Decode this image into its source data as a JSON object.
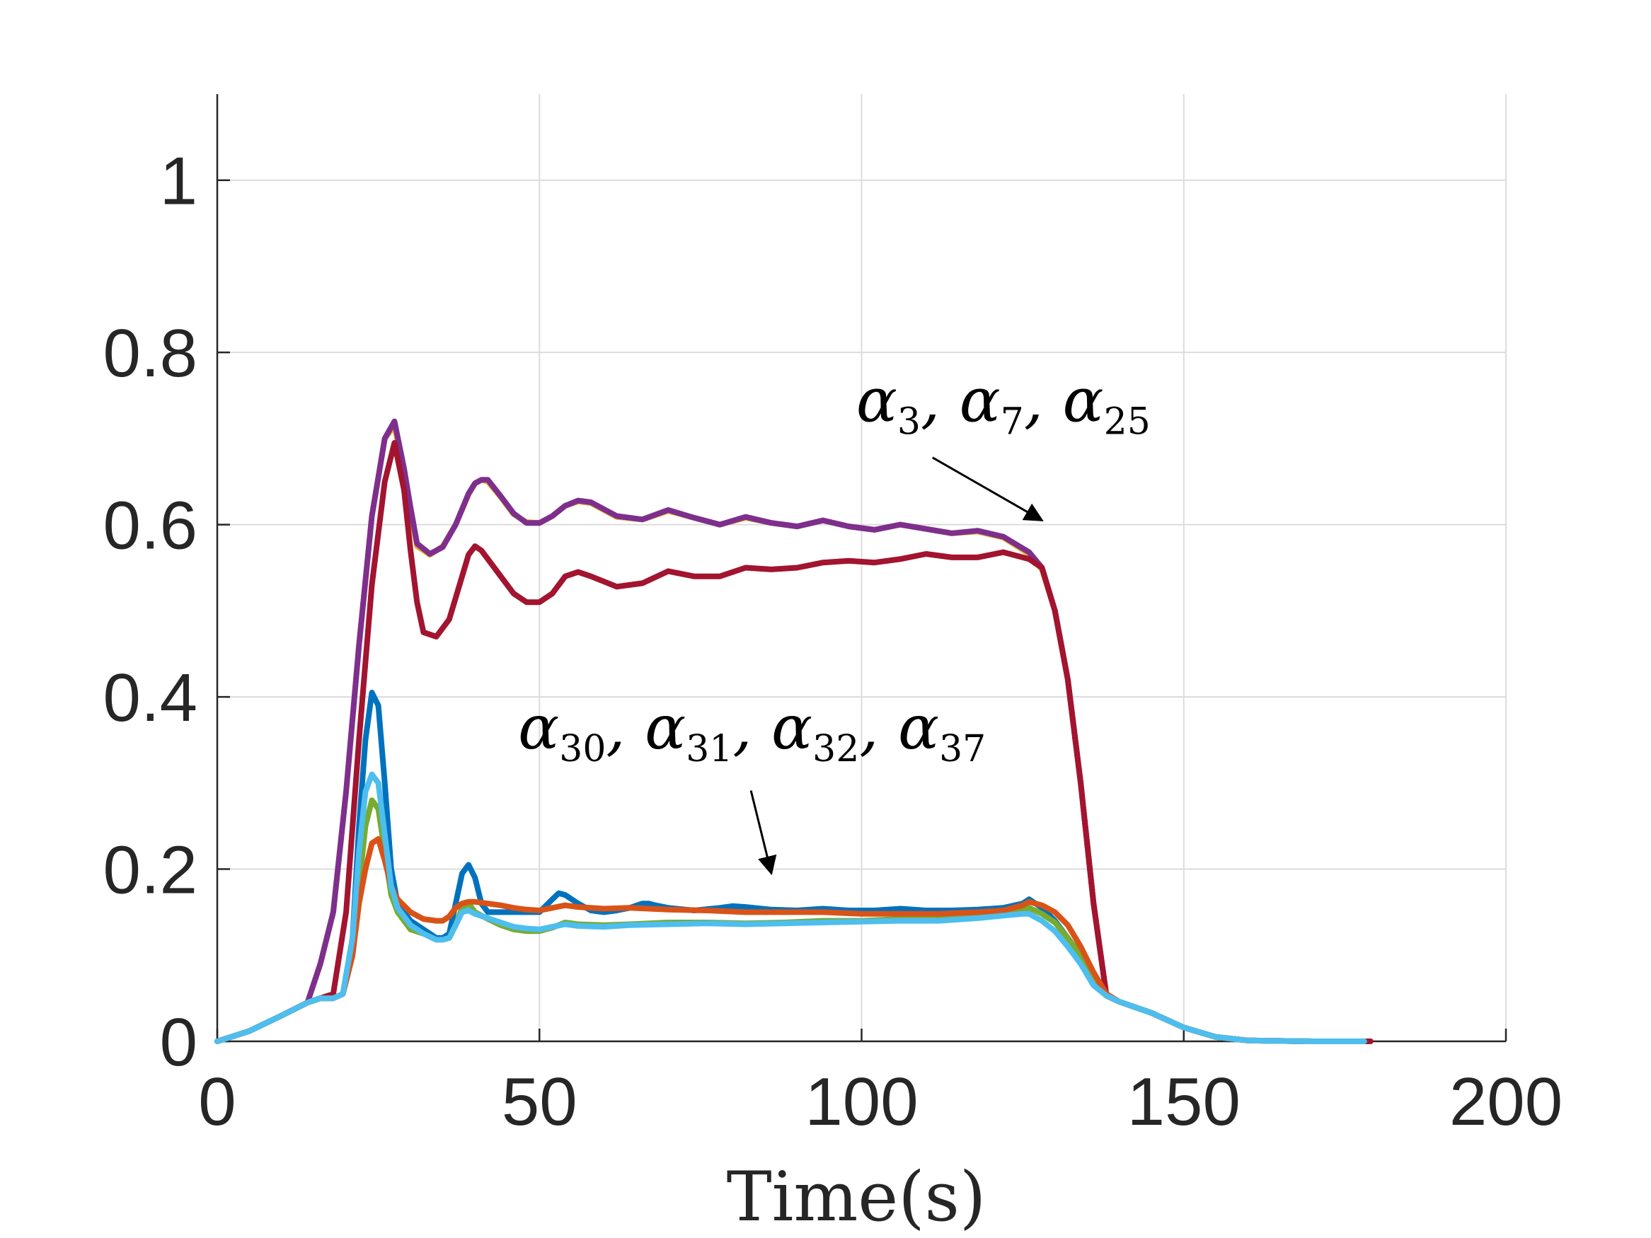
{
  "chart_data": {
    "type": "line",
    "title": "",
    "xlabel": "Time(s)",
    "ylabel": "",
    "xlim": [
      0,
      200
    ],
    "ylim": [
      0,
      1.1
    ],
    "xticks": [
      0,
      50,
      100,
      150,
      200
    ],
    "yticks": [
      0,
      0.2,
      0.4,
      0.6,
      0.8,
      1
    ],
    "xtick_labels": [
      "0",
      "50",
      "100",
      "150",
      "200"
    ],
    "ytick_labels": [
      "0",
      "0.2",
      "0.4",
      "0.6",
      "0.8",
      "1"
    ],
    "grid": true,
    "legend": "none",
    "annotations": [
      {
        "text": "α3, α7, α25",
        "x": 122,
        "y": 0.72,
        "arrow_to": [
          128,
          0.605
        ]
      },
      {
        "text": "α30, α31, α32, α37",
        "x": 83,
        "y": 0.34,
        "arrow_to": [
          86,
          0.195
        ]
      }
    ],
    "series": [
      {
        "color": "#EDB120",
        "x": [
          0,
          5,
          10,
          14,
          16,
          18,
          20,
          22,
          24,
          26,
          27.5,
          29,
          30,
          31,
          33,
          35,
          37,
          39,
          40,
          41,
          42,
          44,
          46,
          48,
          50,
          52,
          54,
          56,
          58,
          62,
          66,
          70,
          74,
          78,
          82,
          86,
          90,
          94,
          98,
          102,
          106,
          110,
          114,
          118,
          122,
          126,
          128,
          130,
          132,
          134,
          136,
          138,
          140,
          145,
          150,
          155,
          160,
          170,
          178
        ],
        "y": [
          0,
          0.012,
          0.03,
          0.045,
          0.09,
          0.15,
          0.29,
          0.46,
          0.61,
          0.7,
          0.715,
          0.66,
          0.615,
          0.575,
          0.565,
          0.575,
          0.6,
          0.635,
          0.648,
          0.652,
          0.65,
          0.632,
          0.612,
          0.603,
          0.602,
          0.61,
          0.622,
          0.627,
          0.625,
          0.609,
          0.606,
          0.616,
          0.608,
          0.6,
          0.608,
          0.602,
          0.598,
          0.605,
          0.598,
          0.594,
          0.6,
          0.595,
          0.59,
          0.592,
          0.585,
          0.566,
          0.548,
          0.5,
          0.42,
          0.3,
          0.16,
          0.053,
          0.046,
          0.033,
          0.016,
          0.005,
          0.001,
          0,
          0
        ]
      },
      {
        "color": "#7E2F8E",
        "x": [
          0,
          5,
          10,
          14,
          16,
          18,
          20,
          22,
          24,
          26,
          27.5,
          29,
          30,
          31,
          33,
          35,
          37,
          39,
          40,
          41,
          42,
          44,
          46,
          48,
          50,
          52,
          54,
          56,
          58,
          62,
          66,
          70,
          74,
          78,
          82,
          86,
          90,
          94,
          98,
          102,
          106,
          110,
          114,
          118,
          122,
          126,
          128,
          130,
          132,
          134,
          136,
          138,
          140,
          145,
          150,
          155,
          160,
          170,
          178
        ],
        "y": [
          0,
          0.012,
          0.03,
          0.045,
          0.09,
          0.15,
          0.29,
          0.46,
          0.61,
          0.7,
          0.72,
          0.665,
          0.62,
          0.578,
          0.566,
          0.574,
          0.6,
          0.636,
          0.648,
          0.652,
          0.652,
          0.633,
          0.613,
          0.602,
          0.602,
          0.61,
          0.622,
          0.628,
          0.626,
          0.61,
          0.606,
          0.617,
          0.608,
          0.6,
          0.609,
          0.602,
          0.598,
          0.605,
          0.598,
          0.594,
          0.6,
          0.595,
          0.59,
          0.593,
          0.586,
          0.568,
          0.55,
          0.5,
          0.42,
          0.3,
          0.16,
          0.053,
          0.046,
          0.033,
          0.016,
          0.005,
          0.001,
          0,
          0
        ]
      },
      {
        "color": "#A2142F",
        "x": [
          0,
          5,
          10,
          14,
          16,
          18,
          20,
          22,
          24,
          26,
          27.5,
          29,
          30,
          31,
          32,
          34,
          36,
          38,
          39,
          40,
          41,
          42,
          44,
          46,
          48,
          50,
          52,
          54,
          56,
          58,
          62,
          66,
          70,
          74,
          78,
          82,
          86,
          90,
          94,
          98,
          102,
          106,
          110,
          114,
          118,
          122,
          126,
          128,
          130,
          132,
          134,
          136,
          138,
          140,
          145,
          150,
          155,
          160,
          170,
          176,
          178,
          179
        ],
        "y": [
          0,
          0.012,
          0.03,
          0.045,
          0.05,
          0.055,
          0.15,
          0.35,
          0.53,
          0.65,
          0.695,
          0.64,
          0.57,
          0.51,
          0.475,
          0.47,
          0.49,
          0.54,
          0.565,
          0.575,
          0.57,
          0.56,
          0.54,
          0.52,
          0.51,
          0.51,
          0.52,
          0.54,
          0.545,
          0.54,
          0.528,
          0.532,
          0.546,
          0.54,
          0.54,
          0.55,
          0.548,
          0.55,
          0.556,
          0.558,
          0.556,
          0.56,
          0.566,
          0.562,
          0.562,
          0.568,
          0.56,
          0.55,
          0.5,
          0.42,
          0.3,
          0.16,
          0.053,
          0.046,
          0.033,
          0.016,
          0.005,
          0.001,
          0,
          0,
          0,
          0
        ]
      },
      {
        "color": "#0072BD",
        "x": [
          0,
          5,
          10,
          14,
          16,
          18,
          19.5,
          21,
          22,
          23,
          24,
          25,
          26,
          27,
          28,
          30,
          32,
          34,
          35,
          36,
          37,
          38,
          39,
          40,
          41,
          42,
          44,
          46,
          48,
          50,
          52,
          53,
          54,
          56,
          58,
          60,
          62,
          64,
          66,
          67,
          68,
          70,
          74,
          78,
          80,
          82,
          86,
          90,
          94,
          98,
          102,
          106,
          110,
          114,
          118,
          122,
          125,
          126,
          128,
          130,
          132,
          134,
          136,
          138,
          140,
          145,
          150,
          155,
          160,
          170,
          178
        ],
        "y": [
          0,
          0.012,
          0.03,
          0.045,
          0.05,
          0.05,
          0.055,
          0.12,
          0.25,
          0.35,
          0.405,
          0.39,
          0.3,
          0.2,
          0.16,
          0.14,
          0.13,
          0.12,
          0.12,
          0.125,
          0.16,
          0.195,
          0.205,
          0.19,
          0.16,
          0.15,
          0.15,
          0.15,
          0.15,
          0.15,
          0.165,
          0.172,
          0.17,
          0.16,
          0.152,
          0.15,
          0.152,
          0.155,
          0.16,
          0.16,
          0.158,
          0.155,
          0.152,
          0.155,
          0.157,
          0.156,
          0.153,
          0.152,
          0.154,
          0.152,
          0.152,
          0.154,
          0.152,
          0.152,
          0.153,
          0.155,
          0.16,
          0.165,
          0.155,
          0.14,
          0.12,
          0.1,
          0.07,
          0.053,
          0.046,
          0.033,
          0.016,
          0.005,
          0.001,
          0,
          0
        ]
      },
      {
        "color": "#77AC30",
        "x": [
          0,
          5,
          10,
          14,
          16,
          18,
          19.5,
          21,
          22,
          23,
          24,
          25,
          26,
          27,
          28,
          30,
          32,
          34,
          35,
          36,
          37,
          38,
          39,
          40,
          42,
          44,
          46,
          48,
          50,
          52,
          54,
          56,
          60,
          64,
          70,
          76,
          82,
          88,
          94,
          100,
          106,
          112,
          118,
          122,
          125,
          126,
          128,
          130,
          132,
          134,
          136,
          138,
          140,
          145,
          150,
          155,
          160,
          170,
          178
        ],
        "y": [
          0,
          0.012,
          0.03,
          0.045,
          0.05,
          0.05,
          0.055,
          0.1,
          0.18,
          0.25,
          0.28,
          0.27,
          0.22,
          0.17,
          0.15,
          0.13,
          0.125,
          0.118,
          0.118,
          0.12,
          0.135,
          0.155,
          0.16,
          0.15,
          0.142,
          0.135,
          0.13,
          0.128,
          0.128,
          0.132,
          0.138,
          0.136,
          0.135,
          0.136,
          0.138,
          0.138,
          0.137,
          0.138,
          0.14,
          0.14,
          0.142,
          0.142,
          0.145,
          0.148,
          0.152,
          0.155,
          0.148,
          0.138,
          0.12,
          0.1,
          0.07,
          0.053,
          0.046,
          0.033,
          0.016,
          0.005,
          0.001,
          0,
          0
        ]
      },
      {
        "color": "#D95319",
        "x": [
          0,
          5,
          10,
          14,
          16,
          18,
          19.5,
          21,
          22,
          23,
          24,
          25,
          26,
          27,
          28,
          30,
          32,
          34,
          35,
          36,
          37,
          38,
          39,
          40,
          42,
          44,
          46,
          48,
          50,
          52,
          54,
          56,
          60,
          64,
          70,
          76,
          82,
          88,
          94,
          100,
          106,
          112,
          118,
          122,
          125,
          126,
          128,
          130,
          132,
          134,
          136,
          138,
          140,
          145,
          150,
          155,
          160,
          170,
          178
        ],
        "y": [
          0,
          0.012,
          0.03,
          0.045,
          0.05,
          0.05,
          0.055,
          0.1,
          0.16,
          0.2,
          0.23,
          0.235,
          0.21,
          0.18,
          0.165,
          0.15,
          0.142,
          0.14,
          0.14,
          0.145,
          0.155,
          0.16,
          0.162,
          0.162,
          0.16,
          0.158,
          0.155,
          0.153,
          0.152,
          0.155,
          0.158,
          0.156,
          0.154,
          0.155,
          0.153,
          0.152,
          0.15,
          0.15,
          0.15,
          0.148,
          0.148,
          0.148,
          0.15,
          0.152,
          0.158,
          0.162,
          0.158,
          0.15,
          0.135,
          0.11,
          0.08,
          0.055,
          0.046,
          0.033,
          0.016,
          0.005,
          0.001,
          0,
          0
        ]
      },
      {
        "color": "#4DBEEE",
        "x": [
          0,
          5,
          10,
          14,
          16,
          18,
          19.5,
          21,
          22,
          23,
          24,
          25,
          26,
          27,
          28,
          30,
          32,
          34,
          35,
          36,
          37,
          38,
          39,
          40,
          42,
          44,
          46,
          48,
          50,
          52,
          54,
          56,
          60,
          64,
          70,
          76,
          82,
          88,
          94,
          100,
          106,
          112,
          118,
          122,
          125,
          126,
          128,
          130,
          132,
          134,
          136,
          138,
          140,
          145,
          150,
          155,
          160,
          170,
          178
        ],
        "y": [
          0,
          0.012,
          0.03,
          0.045,
          0.05,
          0.05,
          0.055,
          0.12,
          0.22,
          0.29,
          0.31,
          0.3,
          0.24,
          0.18,
          0.155,
          0.135,
          0.125,
          0.118,
          0.118,
          0.12,
          0.135,
          0.15,
          0.152,
          0.148,
          0.143,
          0.138,
          0.133,
          0.131,
          0.13,
          0.133,
          0.136,
          0.134,
          0.133,
          0.135,
          0.136,
          0.137,
          0.136,
          0.137,
          0.138,
          0.139,
          0.14,
          0.14,
          0.143,
          0.146,
          0.148,
          0.148,
          0.14,
          0.128,
          0.11,
          0.09,
          0.065,
          0.053,
          0.046,
          0.033,
          0.016,
          0.005,
          0.001,
          0,
          0
        ]
      }
    ]
  }
}
